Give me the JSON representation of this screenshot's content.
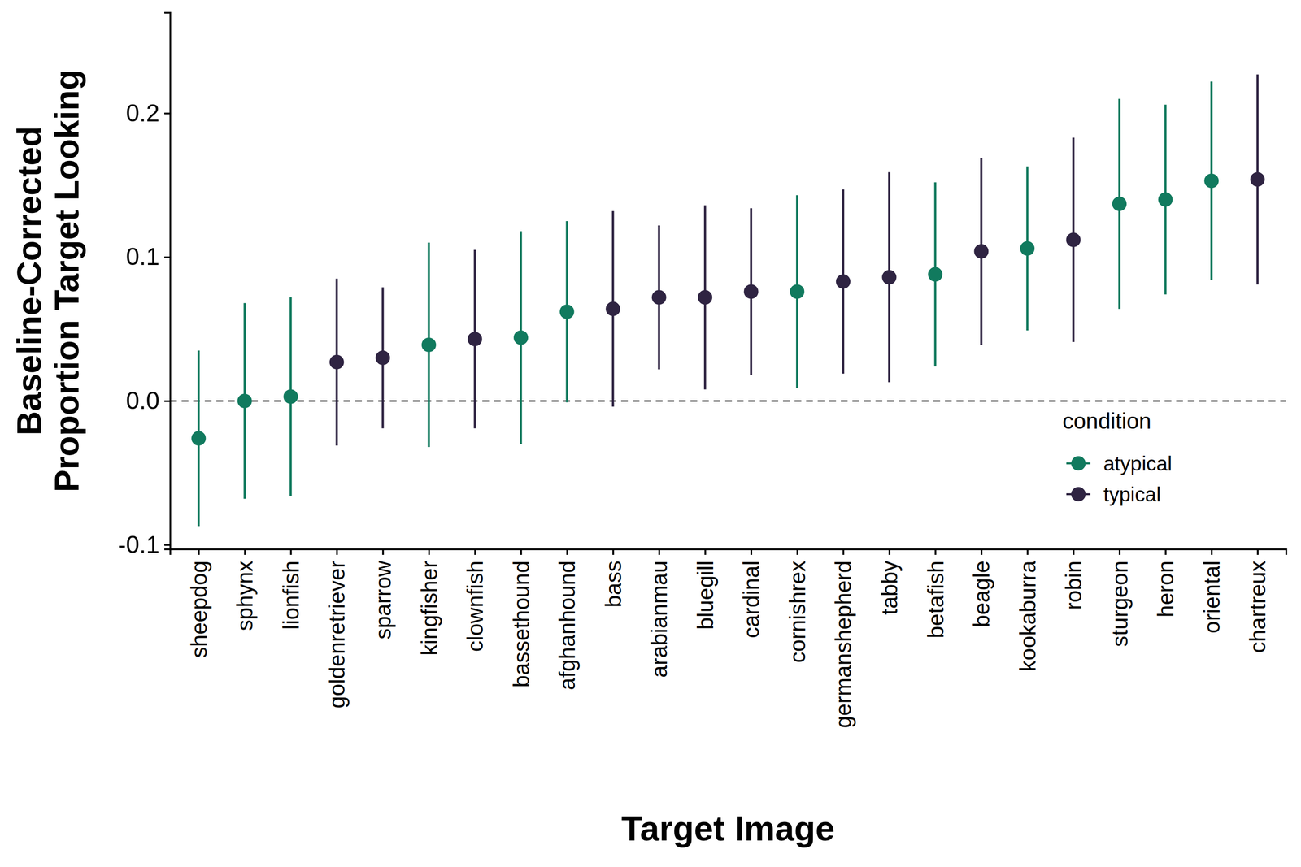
{
  "chart_data": {
    "type": "errorbar",
    "x_label": "Target Image",
    "y_label": "Baseline-Corrected\nProportion Target Looking",
    "legend_title": "condition",
    "legend": "right",
    "reference_line": 0,
    "categories": [
      "sheepdog",
      "sphynx",
      "lionfish",
      "goldenretriever",
      "sparrow",
      "kingfisher",
      "clownfish",
      "bassethound",
      "afghanhound",
      "bass",
      "arabianmau",
      "bluegill",
      "cardinal",
      "cornishrex",
      "germanshepherd",
      "tabby",
      "betafish",
      "beagle",
      "kookaburra",
      "robin",
      "sturgeon",
      "heron",
      "oriental",
      "chartreux"
    ],
    "series": [
      {
        "name": "atypical",
        "color": "#117a5e",
        "marker": "circle",
        "values": [
          -0.026,
          0.0,
          0.003,
          null,
          null,
          0.039,
          null,
          0.044,
          0.062,
          null,
          null,
          null,
          null,
          0.076,
          null,
          null,
          0.088,
          null,
          0.106,
          null,
          0.137,
          0.14,
          0.153,
          null
        ],
        "errors": [
          0.061,
          0.068,
          0.069,
          null,
          null,
          0.071,
          null,
          0.074,
          0.063,
          null,
          null,
          null,
          null,
          0.067,
          null,
          null,
          0.064,
          null,
          0.057,
          null,
          0.073,
          0.066,
          0.069,
          null
        ]
      },
      {
        "name": "typical",
        "color": "#2f2442",
        "marker": "circle",
        "values": [
          null,
          null,
          null,
          0.027,
          0.03,
          null,
          0.043,
          null,
          null,
          0.064,
          0.072,
          0.072,
          0.076,
          null,
          0.083,
          0.086,
          null,
          0.104,
          null,
          0.112,
          null,
          null,
          null,
          0.154
        ],
        "errors": [
          null,
          null,
          null,
          0.058,
          0.049,
          null,
          0.062,
          null,
          null,
          0.068,
          0.05,
          0.064,
          0.058,
          null,
          0.064,
          0.073,
          null,
          0.065,
          null,
          0.071,
          null,
          null,
          null,
          0.073
        ]
      }
    ],
    "ylim": [
      -0.103,
      0.27
    ],
    "yticks": [
      -0.1,
      {
        "value": 0,
        "label": "0.0"
      },
      0.1,
      0.2
    ]
  }
}
